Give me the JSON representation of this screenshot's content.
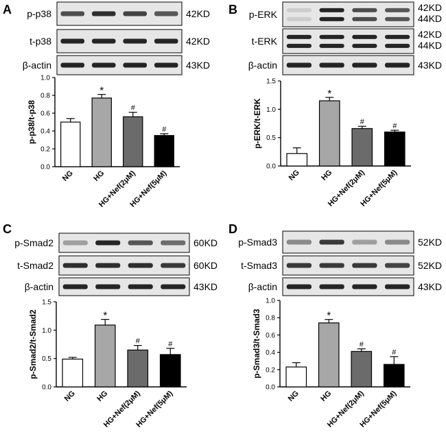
{
  "colors": {
    "ng": "#ffffff",
    "hg": "#a7a7a7",
    "nef2": "#6b6b6b",
    "nef5": "#000000",
    "band": "#1a1a1a",
    "blot_bg": "#e6e6e6"
  },
  "panels": [
    {
      "label": "A",
      "blots": [
        {
          "name": "p-p38",
          "sizes": [
            "42KD"
          ]
        },
        {
          "name": "t-p38",
          "sizes": [
            "42KD"
          ]
        },
        {
          "name": "β-actin",
          "sizes": [
            "43KD"
          ]
        }
      ]
    },
    {
      "label": "B",
      "blots": [
        {
          "name": "p-ERK",
          "sizes": [
            "42KD",
            "44KD"
          ]
        },
        {
          "name": "t-ERK",
          "sizes": [
            "42KD",
            "44KD"
          ]
        },
        {
          "name": "β-actin",
          "sizes": [
            "43KD"
          ]
        }
      ]
    },
    {
      "label": "C",
      "blots": [
        {
          "name": "p-Smad2",
          "sizes": [
            "60KD"
          ]
        },
        {
          "name": "t-Smad2",
          "sizes": [
            "60KD"
          ]
        },
        {
          "name": "β-actin",
          "sizes": [
            "43KD"
          ]
        }
      ]
    },
    {
      "label": "D",
      "blots": [
        {
          "name": "p-Smad3",
          "sizes": [
            "52KD"
          ]
        },
        {
          "name": "t-Smad3",
          "sizes": [
            "52KD"
          ]
        },
        {
          "name": "β-actin",
          "sizes": [
            "43KD"
          ]
        }
      ]
    }
  ],
  "chart_data": [
    {
      "type": "bar",
      "categories": [
        "NG",
        "HG",
        "HG+Nef(2μM)",
        "HG+Nef(5μM)"
      ],
      "values": [
        0.5,
        0.77,
        0.56,
        0.35
      ],
      "errors": [
        0.04,
        0.04,
        0.05,
        0.02
      ],
      "significance": [
        "",
        "*",
        "#",
        "#"
      ],
      "ylabel": "p-p38/t-p38",
      "ylim": [
        0,
        1.0
      ],
      "yticks": [
        "0.0",
        "0.2",
        "0.4",
        "0.6",
        "0.8",
        "1.0"
      ]
    },
    {
      "type": "bar",
      "categories": [
        "NG",
        "HG",
        "HG+Nef(2μM)",
        "HG+Nef(5μM)"
      ],
      "values": [
        0.22,
        1.15,
        0.66,
        0.6
      ],
      "errors": [
        0.1,
        0.06,
        0.04,
        0.03
      ],
      "significance": [
        "",
        "*",
        "#",
        "#"
      ],
      "ylabel": "p-ERK/t-ERK",
      "ylim": [
        0,
        1.5
      ],
      "yticks": [
        "0.0",
        "0.5",
        "1.0",
        "1.5"
      ]
    },
    {
      "type": "bar",
      "categories": [
        "NG",
        "HG",
        "HG+Nef(2μM)",
        "HG+Nef(5μM)"
      ],
      "values": [
        0.49,
        1.09,
        0.65,
        0.57
      ],
      "errors": [
        0.03,
        0.1,
        0.08,
        0.11
      ],
      "significance": [
        "",
        "*",
        "#",
        "#"
      ],
      "ylabel": "p-Smad2/t-Smad2",
      "ylim": [
        0,
        1.5
      ],
      "yticks": [
        "0.0",
        "0.5",
        "1.0",
        "1.5"
      ]
    },
    {
      "type": "bar",
      "categories": [
        "NG",
        "HG",
        "HG+Nef(2μM)",
        "HG+Nef(5μM)"
      ],
      "values": [
        0.23,
        0.74,
        0.41,
        0.26
      ],
      "errors": [
        0.05,
        0.04,
        0.03,
        0.09
      ],
      "significance": [
        "",
        "*",
        "#",
        "#"
      ],
      "ylabel": "p-Smad3/t-Smad3",
      "ylim": [
        0,
        1.0
      ],
      "yticks": [
        "0.0",
        "0.2",
        "0.4",
        "0.6",
        "0.8",
        "1.0"
      ]
    }
  ]
}
